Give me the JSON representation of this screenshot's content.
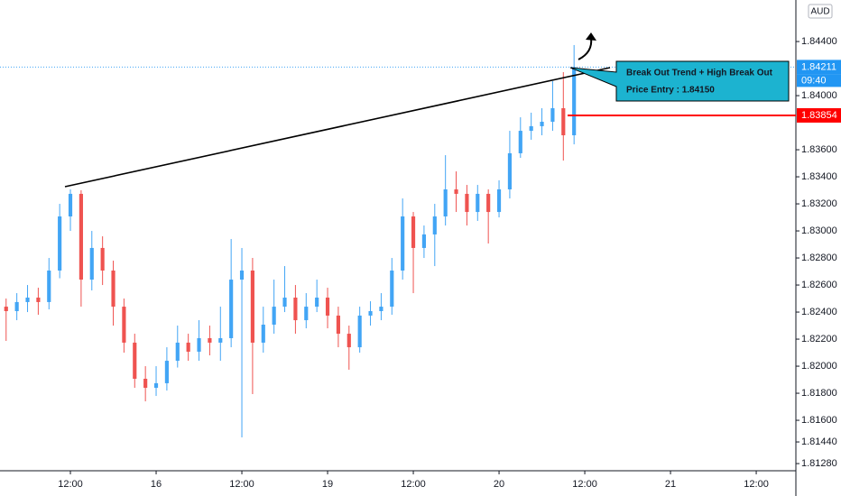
{
  "chart_data": {
    "type": "candlestick",
    "currency": "AUD",
    "countdown": "09:40",
    "annotation": {
      "line1": "Break Out Trend + High Break Out",
      "line2": "Price Entry : 1.84150"
    },
    "entry_line": 1.83854,
    "up_color": "#42a5f5",
    "down_color": "#ef5350",
    "open": [
      1.8244,
      1.82407,
      1.82474,
      1.82507,
      1.82474,
      1.82707,
      1.83107,
      1.83274,
      1.8264,
      1.82874,
      1.82707,
      1.8244,
      1.82174,
      1.81907,
      1.8184,
      1.81874,
      1.8204,
      1.82174,
      1.82107,
      1.82207,
      1.82174,
      1.82207,
      1.8264,
      1.82707,
      1.82174,
      1.82307,
      1.8244,
      1.82507,
      1.8234,
      1.8244,
      1.82507,
      1.82374,
      1.8224,
      1.8214,
      1.82374,
      1.82407,
      1.8244,
      1.82707,
      1.83107,
      1.82874,
      1.82974,
      1.83107,
      1.83307,
      1.83274,
      1.8314,
      1.83274,
      1.8314,
      1.83307,
      1.83574,
      1.8374,
      1.83774,
      1.83807,
      1.83907,
      1.83707
    ],
    "high": [
      1.825,
      1.8254,
      1.826,
      1.8258,
      1.828,
      1.832,
      1.83307,
      1.833,
      1.83,
      1.8296,
      1.8278,
      1.825,
      1.8224,
      1.82,
      1.82,
      1.8214,
      1.823,
      1.8224,
      1.8234,
      1.823,
      1.8244,
      1.8294,
      1.82874,
      1.828,
      1.8244,
      1.8264,
      1.8274,
      1.826,
      1.8254,
      1.8264,
      1.8258,
      1.8244,
      1.823,
      1.8244,
      1.8248,
      1.8254,
      1.828,
      1.8324,
      1.8314,
      1.8304,
      1.832,
      1.8356,
      1.8344,
      1.8334,
      1.8334,
      1.83307,
      1.83374,
      1.8374,
      1.8384,
      1.83874,
      1.83907,
      1.84107,
      1.84174,
      1.84374
    ],
    "low": [
      1.82187,
      1.8234,
      1.824,
      1.8238,
      1.8242,
      1.8265,
      1.83,
      1.8244,
      1.8256,
      1.826,
      1.823,
      1.821,
      1.8184,
      1.8174,
      1.8178,
      1.8182,
      1.8199,
      1.8204,
      1.8204,
      1.8208,
      1.8204,
      1.8214,
      1.81474,
      1.81794,
      1.821,
      1.8224,
      1.824,
      1.8224,
      1.8228,
      1.824,
      1.8228,
      1.8214,
      1.81974,
      1.821,
      1.823,
      1.8234,
      1.8238,
      1.8264,
      1.8254,
      1.828,
      1.8274,
      1.8304,
      1.8314,
      1.8304,
      1.83074,
      1.82907,
      1.831,
      1.8324,
      1.8354,
      1.83674,
      1.83707,
      1.8374,
      1.8352,
      1.8364
    ],
    "close": [
      1.82407,
      1.82474,
      1.82507,
      1.82474,
      1.82707,
      1.83107,
      1.83274,
      1.8264,
      1.82874,
      1.82707,
      1.8244,
      1.82174,
      1.81907,
      1.8184,
      1.81874,
      1.8204,
      1.82174,
      1.82107,
      1.82207,
      1.82174,
      1.82207,
      1.8264,
      1.82707,
      1.82174,
      1.82307,
      1.8244,
      1.82507,
      1.8234,
      1.8244,
      1.82507,
      1.82374,
      1.8224,
      1.8214,
      1.82374,
      1.82407,
      1.8244,
      1.82707,
      1.83107,
      1.82874,
      1.82974,
      1.83107,
      1.83307,
      1.83274,
      1.8314,
      1.83274,
      1.8314,
      1.83307,
      1.83574,
      1.8374,
      1.83774,
      1.83807,
      1.83907,
      1.83707,
      1.84211
    ],
    "xlim": [
      -0.57,
      73.7
    ],
    "xticks": [
      {
        "value": 6,
        "label": "12:00"
      },
      {
        "value": 14,
        "label": "16"
      },
      {
        "value": 22,
        "label": "12:00"
      },
      {
        "value": 30,
        "label": "19"
      },
      {
        "value": 38,
        "label": "12:00"
      },
      {
        "value": 46,
        "label": "20"
      },
      {
        "value": 54,
        "label": "12:00"
      },
      {
        "value": 62,
        "label": "21"
      },
      {
        "value": 70,
        "label": "12:00"
      }
    ],
    "ylim": [
      1.81227,
      1.84707
    ],
    "yticks": [
      {
        "value": 1.844,
        "label": "1.84400"
      },
      {
        "value": 1.84,
        "label": "1.84000"
      },
      {
        "value": 1.836,
        "label": "1.83600"
      },
      {
        "value": 1.834,
        "label": "1.83400"
      },
      {
        "value": 1.832,
        "label": "1.83200"
      },
      {
        "value": 1.83,
        "label": "1.83000"
      },
      {
        "value": 1.828,
        "label": "1.82800"
      },
      {
        "value": 1.826,
        "label": "1.82600"
      },
      {
        "value": 1.824,
        "label": "1.82400"
      },
      {
        "value": 1.822,
        "label": "1.82200"
      },
      {
        "value": 1.82,
        "label": "1.82000"
      },
      {
        "value": 1.818,
        "label": "1.81800"
      },
      {
        "value": 1.816,
        "label": "1.81600"
      },
      {
        "value": 1.8144,
        "label": "1.81440"
      },
      {
        "value": 1.8128,
        "label": "1.81280"
      }
    ]
  }
}
